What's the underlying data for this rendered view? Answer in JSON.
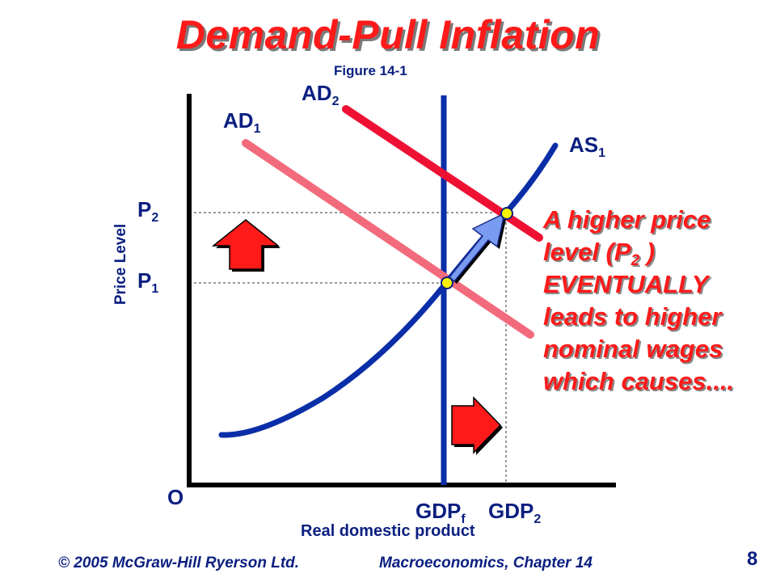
{
  "slide": {
    "title": "Demand-Pull Inflation",
    "figure": "Figure 14-1",
    "page_number": "8",
    "footer_left": "© 2005 McGraw-Hill Ryerson Ltd.",
    "footer_right": "Macroeconomics, Chapter 14"
  },
  "axes": {
    "y_title": "Price Level",
    "x_title": "Real domestic product",
    "origin": "O"
  },
  "labels": {
    "ad1": {
      "main": "AD",
      "sub": "1"
    },
    "ad2": {
      "main": "AD",
      "sub": "2"
    },
    "as1": {
      "main": "AS",
      "sub": "1"
    },
    "p1": {
      "main": "P",
      "sub": "1"
    },
    "p2": {
      "main": "P",
      "sub": "2"
    },
    "gdpf": {
      "main": "GDP",
      "sub": "f"
    },
    "gdp2": {
      "main": "GDP",
      "sub": "2"
    }
  },
  "explanation": {
    "line1": "A higher price",
    "line2_pre": "level (P",
    "line2_sub": "2",
    "line2_post": " )",
    "line3": "EVENTUALLY",
    "line4": "leads to higher",
    "line5": "nominal wages",
    "line6": "which causes...."
  },
  "colors": {
    "title": "#ff1a1a",
    "navy": "#0b1f80",
    "ad1": "#f26b7c",
    "ad2": "#ee1133",
    "as": "#0a2ea8",
    "arrow": "#ff1a1a",
    "move_arrow": "#7a9cf0",
    "point": "#f6f200"
  }
}
